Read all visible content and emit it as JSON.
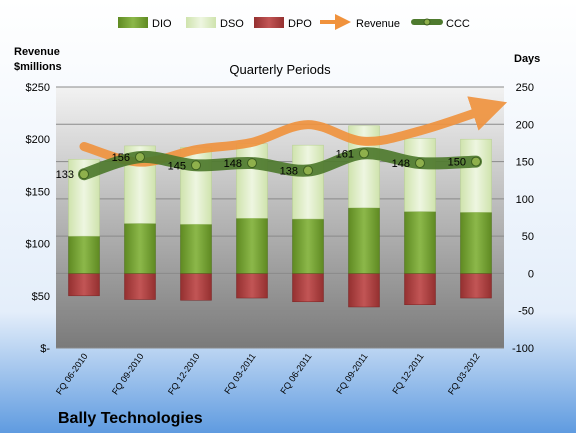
{
  "chart_data": {
    "type": "bar",
    "title": "Quarterly Periods",
    "company": "Bally Technologies",
    "left_axis": {
      "label_line1": "Revenue",
      "label_line2": "$millions",
      "ticks": [
        "$-",
        "$50",
        "$100",
        "$150",
        "$200",
        "$250"
      ],
      "range": [
        0,
        250
      ]
    },
    "right_axis": {
      "label": "Days",
      "ticks": [
        "-100",
        "-50",
        "0",
        "50",
        "100",
        "150",
        "200",
        "250"
      ],
      "range": [
        -100,
        250
      ]
    },
    "categories": [
      "FQ 06-2010",
      "FQ 09-2010",
      "FQ 12-2010",
      "FQ 03-2011",
      "FQ 06-2011",
      "FQ 09-2011",
      "FQ 12-2011",
      "FQ 03-2012"
    ],
    "legend": [
      "DIO",
      "DSO",
      "DPO",
      "Revenue",
      "CCC"
    ],
    "series": [
      {
        "name": "DIO",
        "axis": "days",
        "color": "#6e9a2a",
        "values": [
          50,
          67,
          66,
          74,
          73,
          88,
          83,
          82
        ]
      },
      {
        "name": "DSO",
        "axis": "days",
        "color": "#dcecc0",
        "values": [
          103,
          104,
          103,
          100,
          99,
          110,
          98,
          98
        ]
      },
      {
        "name": "DPO",
        "axis": "days",
        "color": "#b03a3a",
        "values": [
          -30,
          -35,
          -36,
          -33,
          -38,
          -45,
          -42,
          -33
        ]
      },
      {
        "name": "Revenue",
        "axis": "revenue",
        "color": "#f0923c",
        "values": [
          193,
          178,
          190,
          197,
          214,
          198,
          208,
          230
        ]
      },
      {
        "name": "CCC",
        "axis": "days",
        "color": "#4e7a2e",
        "values": [
          133,
          156,
          145,
          148,
          138,
          161,
          148,
          150
        ]
      }
    ],
    "ccc_labels": [
      "133",
      "156",
      "145",
      "148",
      "138",
      "161",
      "148",
      "150"
    ],
    "grid": true,
    "legend_position": "top"
  }
}
